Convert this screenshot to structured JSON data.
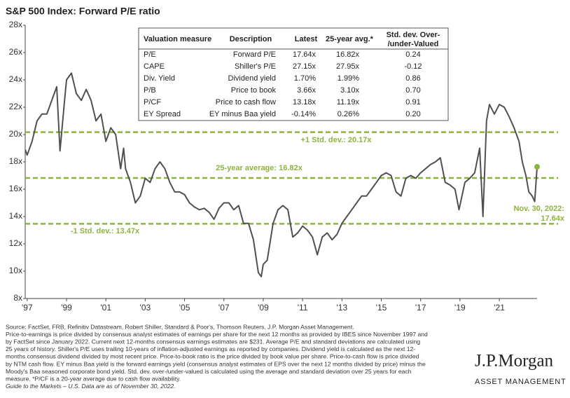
{
  "chart_data": {
    "type": "line",
    "title": "S&P 500 Index: Forward P/E ratio",
    "x": [
      1996.9,
      1997.0,
      1997.25,
      1997.5,
      1997.75,
      1998.0,
      1998.25,
      1998.5,
      1998.67,
      1998.9,
      1999.0,
      1999.25,
      1999.5,
      1999.75,
      2000.0,
      2000.25,
      2000.5,
      2000.75,
      2001.0,
      2001.25,
      2001.5,
      2001.75,
      2001.9,
      2002.0,
      2002.25,
      2002.5,
      2002.75,
      2003.0,
      2003.25,
      2003.5,
      2003.75,
      2004.0,
      2004.25,
      2004.5,
      2004.75,
      2005.0,
      2005.25,
      2005.5,
      2005.75,
      2006.0,
      2006.25,
      2006.5,
      2006.75,
      2007.0,
      2007.25,
      2007.5,
      2007.75,
      2008.0,
      2008.25,
      2008.5,
      2008.75,
      2008.9,
      2009.0,
      2009.2,
      2009.5,
      2009.75,
      2010.0,
      2010.25,
      2010.5,
      2010.75,
      2011.0,
      2011.25,
      2011.5,
      2011.75,
      2012.0,
      2012.25,
      2012.5,
      2012.75,
      2013.0,
      2013.25,
      2013.5,
      2013.75,
      2014.0,
      2014.25,
      2014.5,
      2014.75,
      2015.0,
      2015.25,
      2015.5,
      2015.75,
      2016.0,
      2016.25,
      2016.5,
      2016.75,
      2017.0,
      2017.25,
      2017.5,
      2017.75,
      2018.0,
      2018.25,
      2018.5,
      2018.75,
      2018.95,
      2019.25,
      2019.5,
      2019.75,
      2020.0,
      2020.17,
      2020.35,
      2020.5,
      2020.75,
      2021.0,
      2021.25,
      2021.5,
      2021.75,
      2022.0,
      2022.17,
      2022.35,
      2022.5,
      2022.67,
      2022.8,
      2022.92
    ],
    "series": [
      {
        "name": "Forward P/E",
        "color": "#505050",
        "values": [
          18.9,
          18.5,
          19.5,
          21.0,
          21.5,
          21.5,
          22.5,
          23.5,
          18.8,
          22.5,
          24.0,
          24.5,
          23.0,
          22.5,
          23.3,
          22.5,
          21.0,
          21.5,
          19.5,
          20.5,
          20.0,
          17.5,
          19.0,
          17.5,
          16.5,
          15.0,
          15.5,
          16.8,
          16.5,
          17.5,
          18.0,
          17.5,
          16.5,
          15.8,
          15.8,
          15.6,
          15.0,
          14.7,
          14.5,
          14.6,
          14.3,
          13.8,
          14.6,
          15.0,
          15.0,
          14.5,
          14.8,
          13.5,
          13.5,
          12.3,
          9.9,
          9.6,
          10.5,
          10.8,
          13.5,
          14.5,
          14.8,
          14.5,
          12.5,
          12.8,
          13.3,
          13.0,
          12.5,
          11.2,
          12.5,
          12.8,
          12.3,
          12.7,
          13.5,
          14.0,
          14.5,
          15.0,
          15.5,
          15.5,
          16.0,
          16.5,
          17.0,
          17.2,
          17.0,
          15.8,
          15.5,
          16.8,
          17.0,
          16.8,
          17.2,
          17.5,
          17.8,
          18.0,
          18.3,
          16.5,
          16.3,
          16.0,
          14.5,
          16.5,
          16.8,
          17.2,
          19.0,
          14.0,
          21.0,
          22.2,
          21.5,
          22.2,
          22.0,
          21.3,
          20.5,
          19.5,
          18.0,
          17.0,
          15.8,
          15.5,
          15.1,
          17.64
        ]
      }
    ],
    "xlim": [
      1996.9,
      2022.92
    ],
    "xticks": [
      {
        "value": 1997,
        "label": "'97"
      },
      {
        "value": 1999,
        "label": "'99"
      },
      {
        "value": 2001,
        "label": "'01"
      },
      {
        "value": 2003,
        "label": "'03"
      },
      {
        "value": 2005,
        "label": "'05"
      },
      {
        "value": 2007,
        "label": "'07"
      },
      {
        "value": 2009,
        "label": "'09"
      },
      {
        "value": 2011,
        "label": "'11"
      },
      {
        "value": 2013,
        "label": "'13"
      },
      {
        "value": 2015,
        "label": "'15"
      },
      {
        "value": 2017,
        "label": "'17"
      },
      {
        "value": 2019,
        "label": "'19"
      },
      {
        "value": 2021,
        "label": "'21"
      }
    ],
    "ylim": [
      8,
      28
    ],
    "yticks": [
      {
        "value": 8,
        "label": "8x"
      },
      {
        "value": 10,
        "label": "10x"
      },
      {
        "value": 12,
        "label": "12x"
      },
      {
        "value": 14,
        "label": "14x"
      },
      {
        "value": 16,
        "label": "16x"
      },
      {
        "value": 18,
        "label": "18x"
      },
      {
        "value": 20,
        "label": "20x"
      },
      {
        "value": 22,
        "label": "22x"
      },
      {
        "value": 24,
        "label": "24x"
      },
      {
        "value": 26,
        "label": "26x"
      },
      {
        "value": 28,
        "label": "28x"
      }
    ],
    "reference_lines": [
      {
        "value": 20.17,
        "label": "+1 Std. dev.: 20.17x"
      },
      {
        "value": 16.82,
        "label": "25-year average: 16.82x"
      },
      {
        "value": 13.47,
        "label": "-1 Std. dev.: 13.47x"
      }
    ],
    "reference_color": "#8cb43c",
    "end_label": [
      "Nov. 30, 2022:",
      "17.64x"
    ],
    "table": {
      "header": [
        "Valuation measure",
        "Description",
        "Latest",
        "25-year avg.*",
        [
          "Std. dev. Over-",
          "/under-Valued"
        ]
      ],
      "rows": [
        [
          "P/E",
          "Forward P/E",
          "17.64x",
          "16.82x",
          "0.24"
        ],
        [
          "CAPE",
          "Shiller's P/E",
          "27.15x",
          "27.95x",
          "-0.12"
        ],
        [
          "Div. Yield",
          "Dividend yield",
          "1.70%",
          "1.99%",
          "0.86"
        ],
        [
          "P/B",
          "Price to book",
          "3.66x",
          "3.10x",
          "0.70"
        ],
        [
          "P/CF",
          "Price to cash flow",
          "13.18x",
          "11.19x",
          "0.91"
        ],
        [
          "EY Spread",
          "EY minus Baa yield",
          "-0.14%",
          "0.26%",
          "0.20"
        ]
      ]
    },
    "footnotes": [
      "Source: FactSet, FRB, Refinitiv Datastream, Robert Shiller, Standard & Poor's, Thomson Reuters, J.P. Morgan Asset Management.",
      "Price-to-earnings is price divided by consensus analyst estimates of earnings per share for the next 12 months as provided by IBES since November 1997 and",
      "by FactSet since January 2022. Current next 12-months consensus earnings estimates are $231. Average P/E and standard deviations are calculated using",
      "25 years of history. Shiller's P/E uses trailing 10-years of inflation-adjusted earnings as reported by companies. Dividend yield is calculated as the next 12-",
      "months consensus dividend divided by most recent price. Price-to-book ratio is the price divided by book value per share. Price-to-cash flow is price divided",
      "by NTM cash flow. EY minus Baa yield is the forward earnings yield (consensus analyst estimates of EPS over the next 12 months divided by price) minus the",
      "Moody's Baa seasoned corporate bond yield. Std. dev. over-/under-valued is calculated using the average and standard deviation over 25 years for each",
      "measure. *P/CF is a 20-year average due to cash flow availability.",
      "Guide to the Markets – U.S. Data are as of November 30, 2022."
    ],
    "logo": [
      "J.P.Morgan",
      "ASSET MANAGEMENT"
    ]
  }
}
